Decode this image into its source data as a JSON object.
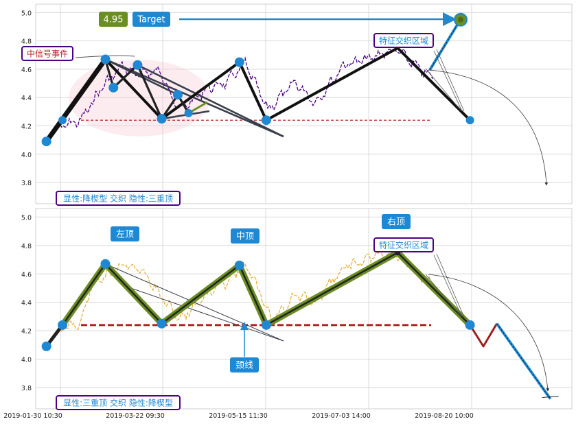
{
  "chart_data": [
    {
      "type": "line",
      "panel": "top",
      "ylim": [
        3.65,
        5.06
      ],
      "yticks": [
        "5.0",
        "4.8",
        "4.6",
        "4.4",
        "4.2",
        "4.0",
        "3.8"
      ],
      "badges": {
        "value": "4.95",
        "target": "Target"
      },
      "annotations": {
        "signal_event": "中信号事件",
        "feature_zone": "特征交织区域"
      },
      "caption": "显性:降楔型 交织 隐性:三重顶",
      "neckline_y": 4.24,
      "target_y": 4.95,
      "series_color": "#4b0082",
      "pattern_color": "#111111",
      "marker_color": "#1e88d2",
      "pivots": [
        {
          "x": 0.02,
          "y": 4.09
        },
        {
          "x": 0.05,
          "y": 4.24
        },
        {
          "x": 0.13,
          "y": 4.67
        },
        {
          "x": 0.145,
          "y": 4.47
        },
        {
          "x": 0.19,
          "y": 4.63
        },
        {
          "x": 0.235,
          "y": 4.25
        },
        {
          "x": 0.265,
          "y": 4.42
        },
        {
          "x": 0.285,
          "y": 4.29
        },
        {
          "x": 0.38,
          "y": 4.65
        },
        {
          "x": 0.43,
          "y": 4.24
        },
        {
          "x": 0.675,
          "y": 4.75
        },
        {
          "x": 0.81,
          "y": 4.24
        },
        {
          "x": 0.81,
          "y": 4.95
        }
      ]
    },
    {
      "type": "line",
      "panel": "bottom",
      "ylim": [
        3.65,
        5.06
      ],
      "yticks": [
        "5.0",
        "4.8",
        "4.6",
        "4.4",
        "4.2",
        "4.0",
        "3.8"
      ],
      "labels": {
        "left_top": "左顶",
        "middle_top": "中顶",
        "right_top": "右顶",
        "neckline": "颈线"
      },
      "annotations": {
        "feature_zone": "特征交织区域"
      },
      "caption": "显性:三重顶 交织 隐性:降楔型",
      "neckline_y": 4.24,
      "series_color": "#e8b03a",
      "pattern_color": "#6b8e23",
      "marker_color": "#1e88d2",
      "pivots": [
        {
          "x": 0.02,
          "y": 4.09
        },
        {
          "x": 0.05,
          "y": 4.24
        },
        {
          "x": 0.13,
          "y": 4.67
        },
        {
          "x": 0.235,
          "y": 4.25
        },
        {
          "x": 0.38,
          "y": 4.66
        },
        {
          "x": 0.43,
          "y": 4.24
        },
        {
          "x": 0.675,
          "y": 4.75
        },
        {
          "x": 0.81,
          "y": 4.24
        }
      ],
      "projection": [
        {
          "x": 0.81,
          "y": 4.24
        },
        {
          "x": 0.835,
          "y": 4.09
        },
        {
          "x": 0.86,
          "y": 4.25
        },
        {
          "x": 0.96,
          "y": 3.72
        }
      ]
    }
  ],
  "xticks": [
    "2019-01-30 10:30",
    "2019-03-22 09:30",
    "2019-05-15 11:30",
    "2019-07-03 14:00",
    "2019-08-20 10:00"
  ]
}
